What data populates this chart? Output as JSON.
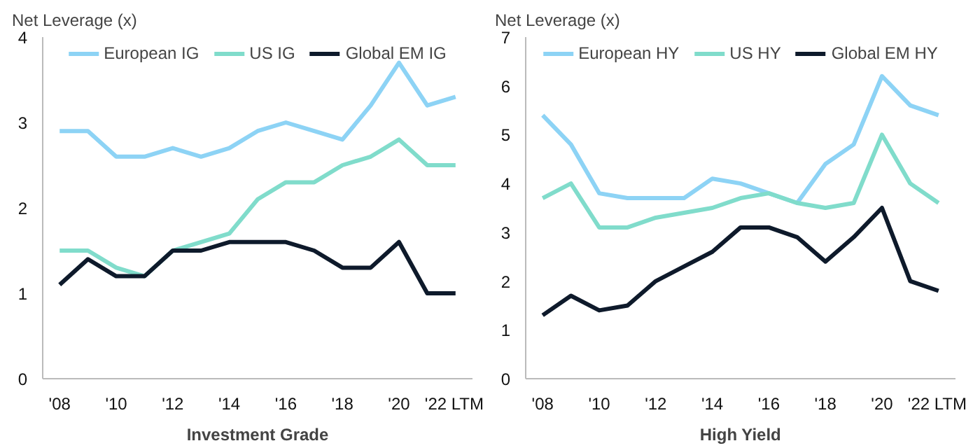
{
  "chart_data": [
    {
      "type": "line",
      "ylabel": "Net Leverage (x)",
      "xlabel": "Investment Grade",
      "categories": [
        "'08",
        null,
        "'10",
        null,
        "'12",
        null,
        "'14",
        null,
        "'16",
        null,
        "'18",
        null,
        "'20",
        null,
        "'22 LTM"
      ],
      "ylim": [
        0,
        4
      ],
      "yticks": [
        0,
        1,
        2,
        3,
        4
      ],
      "grid": false,
      "legend": "top",
      "marker": "none",
      "line_style": "solid",
      "series": [
        {
          "name": "European IG",
          "color": "#8dd3f5",
          "values": [
            2.9,
            2.9,
            2.6,
            2.6,
            2.7,
            2.6,
            2.7,
            2.9,
            3.0,
            2.9,
            2.8,
            3.2,
            3.7,
            3.2,
            3.3
          ]
        },
        {
          "name": "US IG",
          "color": "#80dccb",
          "values": [
            1.5,
            1.5,
            1.3,
            1.2,
            1.5,
            1.6,
            1.7,
            2.1,
            2.3,
            2.3,
            2.5,
            2.6,
            2.8,
            2.5,
            2.5
          ]
        },
        {
          "name": "Global EM IG",
          "color": "#0e1a2b",
          "values": [
            1.1,
            1.4,
            1.2,
            1.2,
            1.5,
            1.5,
            1.6,
            1.6,
            1.6,
            1.5,
            1.3,
            1.3,
            1.6,
            1.0,
            1.0
          ]
        }
      ]
    },
    {
      "type": "line",
      "ylabel": "Net Leverage (x)",
      "xlabel": "High Yield",
      "categories": [
        "'08",
        null,
        "'10",
        null,
        "'12",
        null,
        "'14",
        null,
        "'16",
        null,
        "'18",
        null,
        "'20",
        null,
        "'22 LTM"
      ],
      "ylim": [
        0,
        7
      ],
      "yticks": [
        0,
        1,
        2,
        3,
        4,
        5,
        6,
        7
      ],
      "grid": false,
      "legend": "top",
      "marker": "none",
      "line_style": "solid",
      "series": [
        {
          "name": "European HY",
          "color": "#8dd3f5",
          "values": [
            5.4,
            4.8,
            3.8,
            3.7,
            3.7,
            3.7,
            4.1,
            4.0,
            3.8,
            3.6,
            4.4,
            4.8,
            6.2,
            5.6,
            5.4
          ]
        },
        {
          "name": "US HY",
          "color": "#80dccb",
          "values": [
            3.7,
            4.0,
            3.1,
            3.1,
            3.3,
            3.4,
            3.5,
            3.7,
            3.8,
            3.6,
            3.5,
            3.6,
            5.0,
            4.0,
            3.6
          ]
        },
        {
          "name": "Global EM HY",
          "color": "#0e1a2b",
          "values": [
            1.3,
            1.7,
            1.4,
            1.5,
            2.0,
            2.3,
            2.6,
            3.1,
            3.1,
            2.9,
            2.4,
            2.9,
            3.5,
            2.0,
            1.8
          ]
        }
      ]
    }
  ]
}
